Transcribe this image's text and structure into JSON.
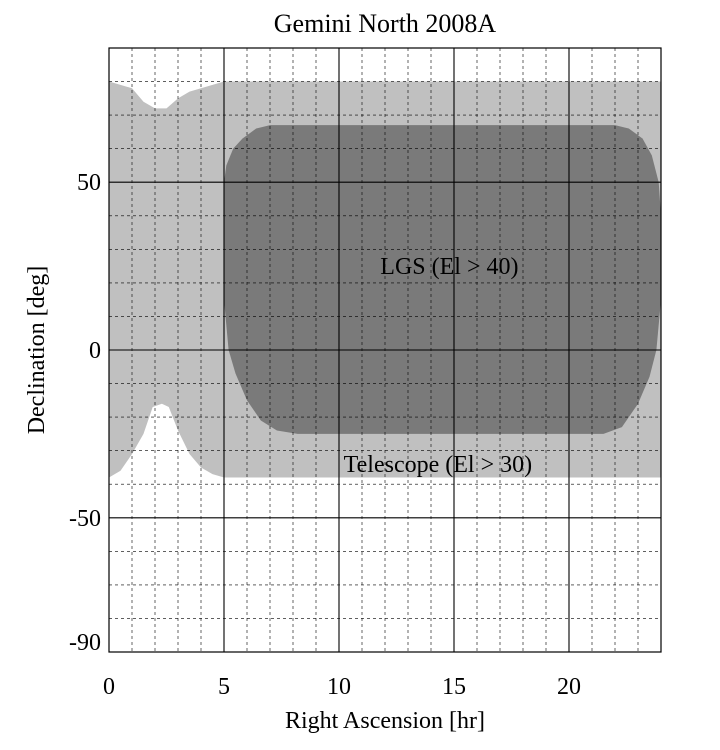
{
  "chart_data": {
    "type": "area",
    "title": "Gemini North 2008A",
    "xlabel": "Right Ascension [hr]",
    "ylabel": "Declination [deg]",
    "xlim": [
      0,
      24
    ],
    "ylim": [
      -90,
      90
    ],
    "x_ticks": [
      0,
      5,
      10,
      15,
      20
    ],
    "x_tick_labels": [
      "0",
      "5",
      "10",
      "15",
      "20"
    ],
    "y_ticks": [
      50,
      0,
      -50,
      -90
    ],
    "y_tick_labels": [
      "50",
      "0",
      "-50",
      "-90"
    ],
    "grid": {
      "major": true,
      "minor": true,
      "minor_x_step": 1,
      "minor_y_step": 10
    },
    "series": [
      {
        "name": "Telescope (El > 30)",
        "color": "#c0c0c0",
        "upper": [
          [
            0,
            80
          ],
          [
            0.5,
            79
          ],
          [
            1.0,
            78
          ],
          [
            1.5,
            74
          ],
          [
            2.0,
            72
          ],
          [
            2.5,
            72
          ],
          [
            3.0,
            75
          ],
          [
            3.5,
            77
          ],
          [
            4.0,
            78
          ],
          [
            4.5,
            79
          ],
          [
            5,
            80
          ],
          [
            24,
            80
          ]
        ],
        "lower": [
          [
            0,
            -38
          ],
          [
            0.5,
            -36
          ],
          [
            1.0,
            -31
          ],
          [
            1.5,
            -25
          ],
          [
            1.9,
            -17
          ],
          [
            2.3,
            -16
          ],
          [
            2.6,
            -17
          ],
          [
            3.0,
            -24
          ],
          [
            3.5,
            -31
          ],
          [
            4.0,
            -35
          ],
          [
            4.5,
            -37
          ],
          [
            5,
            -38
          ],
          [
            23.5,
            -38
          ],
          [
            24,
            -38
          ]
        ]
      },
      {
        "name": "LGS (El > 40)",
        "color": "#7a7a7a",
        "upper": [
          [
            5,
            50
          ],
          [
            5.1,
            55
          ],
          [
            5.4,
            60
          ],
          [
            5.8,
            63
          ],
          [
            6.4,
            66
          ],
          [
            7,
            67
          ],
          [
            22,
            67
          ],
          [
            22.6,
            66
          ],
          [
            23.2,
            63
          ],
          [
            23.6,
            58
          ],
          [
            23.9,
            50
          ],
          [
            24,
            40
          ]
        ],
        "lower": [
          [
            5,
            15
          ],
          [
            5.2,
            0
          ],
          [
            5.5,
            -7
          ],
          [
            6.0,
            -15
          ],
          [
            6.6,
            -21
          ],
          [
            7.3,
            -24
          ],
          [
            8.2,
            -25
          ],
          [
            21.5,
            -25
          ],
          [
            22.3,
            -23
          ],
          [
            23.0,
            -16
          ],
          [
            23.5,
            -8
          ],
          [
            23.8,
            0
          ],
          [
            24,
            15
          ]
        ]
      }
    ],
    "annotations": [
      {
        "text": "LGS (El > 40)",
        "x": 14.8,
        "y": 25
      },
      {
        "text": "Telescope (El > 30)",
        "x": 14.3,
        "y": -34
      }
    ]
  }
}
